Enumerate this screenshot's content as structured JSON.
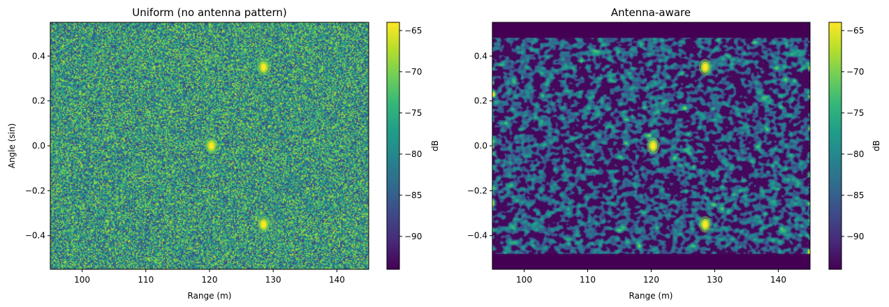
{
  "chart_data": [
    {
      "type": "heatmap",
      "title": "Uniform (no antenna pattern)",
      "xlabel": "Range (m)",
      "ylabel": "Angle (sin)",
      "xlim": [
        95,
        145
      ],
      "ylim": [
        -0.55,
        0.55
      ],
      "xticks": [
        100,
        110,
        120,
        130,
        140
      ],
      "yticks": [
        -0.4,
        -0.2,
        0.0,
        0.2,
        0.4
      ],
      "colorbar": {
        "label": "dB",
        "range": [
          -94,
          -64
        ],
        "ticks": [
          -90,
          -85,
          -80,
          -75,
          -70,
          -65
        ]
      },
      "background_level_db": -78,
      "angle_support": [
        -0.55,
        0.55
      ],
      "targets": [
        {
          "range_m": 128.5,
          "angle_sin": 0.35,
          "peak_db": -64
        },
        {
          "range_m": 120.3,
          "angle_sin": 0.0,
          "peak_db": -64
        },
        {
          "range_m": 128.5,
          "angle_sin": -0.35,
          "peak_db": -64
        }
      ]
    },
    {
      "type": "heatmap",
      "title": "Antenna-aware",
      "xlabel": "Range (m)",
      "ylabel": "",
      "xlim": [
        95,
        145
      ],
      "ylim": [
        -0.55,
        0.55
      ],
      "xticks": [
        100,
        110,
        120,
        130,
        140
      ],
      "yticks": [
        -0.4,
        -0.2,
        0.0,
        0.2,
        0.4
      ],
      "colorbar": {
        "label": "dB",
        "range": [
          -94,
          -64
        ],
        "ticks": [
          -90,
          -85,
          -80,
          -75,
          -70,
          -65
        ]
      },
      "background_level_db": -84,
      "angle_support": [
        -0.48,
        0.48
      ],
      "targets": [
        {
          "range_m": 128.5,
          "angle_sin": 0.35,
          "peak_db": -64
        },
        {
          "range_m": 120.3,
          "angle_sin": 0.0,
          "peak_db": -64
        },
        {
          "range_m": 128.5,
          "angle_sin": -0.35,
          "peak_db": -64
        }
      ]
    }
  ]
}
